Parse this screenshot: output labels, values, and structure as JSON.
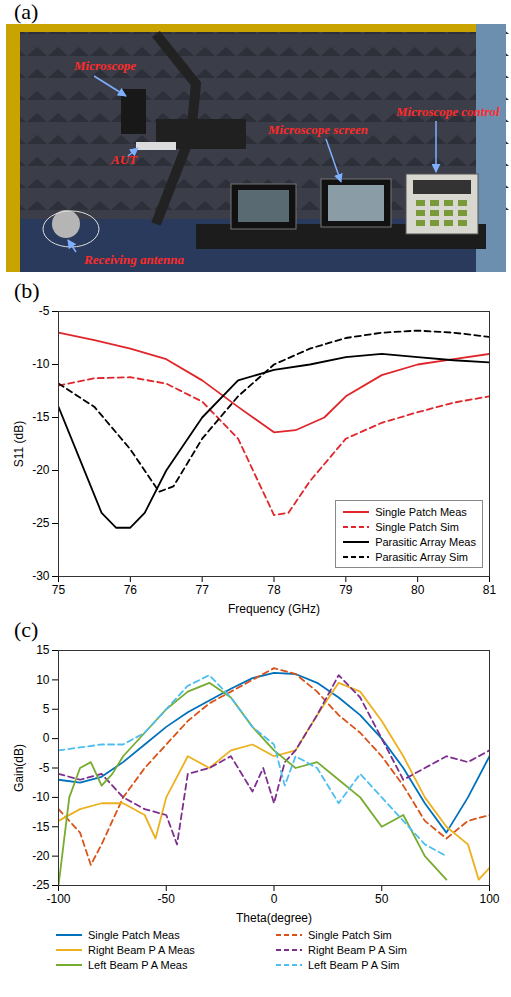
{
  "photo": {
    "panel": "(a)",
    "labels": [
      "Microscope",
      "AUT",
      "Microscope screen",
      "Microscope control",
      "Receiving antenna"
    ]
  },
  "chart_data": [
    {
      "type": "line",
      "title": "(b)",
      "x_label": "Frequency (GHz)",
      "y_label": "S11 (dB)",
      "xlim": [
        75,
        81
      ],
      "xticks": [
        75,
        76,
        77,
        78,
        79,
        80,
        81
      ],
      "ylim": [
        -30,
        -5
      ],
      "yticks": [
        -30,
        -25,
        -20,
        -15,
        -10,
        -5
      ],
      "grid": false,
      "legend": "lower right",
      "series": [
        {
          "name": "Single Patch Meas",
          "color": "#e0262b",
          "line_style": "solid",
          "x": [
            75,
            75.5,
            76,
            76.5,
            77,
            77.5,
            78,
            78.3,
            78.7,
            79,
            79.5,
            80,
            80.5,
            81
          ],
          "values": [
            -7,
            -7.7,
            -8.5,
            -9.5,
            -11.5,
            -14,
            -16.4,
            -16.2,
            -15,
            -13,
            -11,
            -10,
            -9.5,
            -9
          ]
        },
        {
          "name": "Single Patch Sim",
          "color": "#e0262b",
          "line_style": "dashed",
          "x": [
            75,
            75.5,
            76,
            76.5,
            77,
            77.5,
            78,
            78.2,
            78.5,
            79,
            79.5,
            80,
            80.5,
            81
          ],
          "values": [
            -12,
            -11.3,
            -11.2,
            -11.8,
            -13.5,
            -17,
            -24.2,
            -24,
            -21,
            -17,
            -15.5,
            -14.5,
            -13.6,
            -13
          ]
        },
        {
          "name": "Parasitic Array Meas",
          "color": "#000000",
          "line_style": "solid",
          "x": [
            75,
            75.3,
            75.6,
            75.8,
            76,
            76.2,
            76.5,
            77,
            77.5,
            78,
            78.5,
            79,
            79.5,
            80,
            80.5,
            81
          ],
          "values": [
            -14,
            -19,
            -24,
            -25.4,
            -25.4,
            -24,
            -20,
            -15,
            -11.5,
            -10.5,
            -10,
            -9.3,
            -9,
            -9.3,
            -9.6,
            -9.8
          ]
        },
        {
          "name": "Parasitic Array Sim",
          "color": "#000000",
          "line_style": "dashed",
          "x": [
            75,
            75.5,
            76,
            76.4,
            76.6,
            77,
            77.5,
            78,
            78.5,
            79,
            79.5,
            80,
            80.5,
            81
          ],
          "values": [
            -11.8,
            -14,
            -18,
            -22,
            -21.5,
            -17,
            -13,
            -10,
            -8.5,
            -7.5,
            -7,
            -6.8,
            -7,
            -7.4
          ]
        }
      ]
    },
    {
      "type": "line",
      "title": "(c)",
      "x_label": "Theta(degree)",
      "y_label": "Gain(dB)",
      "xlim": [
        -100,
        100
      ],
      "xticks": [
        -100,
        -50,
        0,
        50,
        100
      ],
      "ylim": [
        -25,
        15
      ],
      "yticks": [
        -25,
        -20,
        -15,
        -10,
        -5,
        0,
        5,
        10,
        15
      ],
      "grid": false,
      "legend": "bottom",
      "series": [
        {
          "name": "Single Patch Meas",
          "color": "#0072bd",
          "line_style": "solid",
          "x": [
            -100,
            -90,
            -80,
            -70,
            -60,
            -50,
            -40,
            -30,
            -20,
            -10,
            0,
            10,
            20,
            30,
            40,
            50,
            60,
            70,
            80,
            90,
            100
          ],
          "values": [
            -7,
            -7.5,
            -6.5,
            -4,
            -1,
            2,
            4.5,
            6.5,
            8.5,
            10.3,
            11.2,
            11,
            9.5,
            7,
            4,
            0,
            -5,
            -11,
            -16,
            -10,
            -3
          ]
        },
        {
          "name": "Single Patch Sim",
          "color": "#d95319",
          "line_style": "dashed",
          "x": [
            -100,
            -90,
            -85,
            -80,
            -70,
            -60,
            -50,
            -40,
            -30,
            -20,
            -10,
            0,
            10,
            20,
            30,
            40,
            50,
            60,
            70,
            80,
            90,
            100
          ],
          "values": [
            -12,
            -16,
            -21.5,
            -18,
            -10,
            -5,
            -1,
            3,
            6,
            8,
            10,
            12,
            11,
            8,
            4,
            1,
            -3,
            -8,
            -14,
            -17,
            -14,
            -13
          ]
        },
        {
          "name": "Right Beam P A  Meas",
          "color": "#edb120",
          "line_style": "solid",
          "x": [
            -100,
            -90,
            -80,
            -70,
            -60,
            -55,
            -50,
            -40,
            -30,
            -20,
            -10,
            0,
            10,
            20,
            30,
            40,
            50,
            60,
            70,
            80,
            90,
            95,
            100
          ],
          "values": [
            -14,
            -12,
            -11,
            -11,
            -13,
            -17,
            -10,
            -3,
            -5,
            -2,
            -1,
            -3,
            -2,
            4,
            9.5,
            8,
            3,
            -3,
            -10,
            -15,
            -18,
            -24,
            -22
          ]
        },
        {
          "name": "Right Beam P A  Sim",
          "color": "#7e2f8e",
          "line_style": "dashed",
          "x": [
            -100,
            -90,
            -80,
            -70,
            -60,
            -50,
            -45,
            -40,
            -30,
            -20,
            -10,
            -5,
            0,
            5,
            10,
            20,
            30,
            40,
            50,
            60,
            70,
            80,
            90,
            100
          ],
          "values": [
            -6,
            -7,
            -6,
            -10,
            -12,
            -13,
            -18,
            -6,
            -5,
            -3,
            -9,
            -5,
            -11,
            -4,
            -2,
            4,
            10.8,
            7,
            0,
            -7,
            -5,
            -3,
            -4,
            -2
          ]
        },
        {
          "name": "Left Beam P A  Meas",
          "color": "#77ac30",
          "line_style": "solid",
          "x": [
            -100,
            -95,
            -90,
            -85,
            -80,
            -75,
            -70,
            -60,
            -50,
            -40,
            -30,
            -20,
            -10,
            0,
            10,
            20,
            30,
            40,
            50,
            60,
            70,
            80
          ],
          "values": [
            -25,
            -10,
            -5,
            -4,
            -8,
            -6,
            -3,
            1,
            5,
            8,
            9.5,
            7,
            2,
            -2,
            -5,
            -4,
            -7,
            -10,
            -15,
            -13,
            -20,
            -24
          ]
        },
        {
          "name": "Left Beam P A  Sim",
          "color": "#4dbeee",
          "line_style": "dashed",
          "x": [
            -100,
            -90,
            -80,
            -70,
            -60,
            -50,
            -40,
            -30,
            -20,
            -10,
            0,
            5,
            10,
            20,
            30,
            40,
            50,
            60,
            70,
            80
          ],
          "values": [
            -2,
            -1.5,
            -1,
            -1,
            1,
            5,
            9,
            10.8,
            7,
            2,
            -1,
            -8,
            -3,
            -5,
            -11,
            -6,
            -10,
            -14,
            -18,
            -20
          ]
        }
      ]
    }
  ]
}
